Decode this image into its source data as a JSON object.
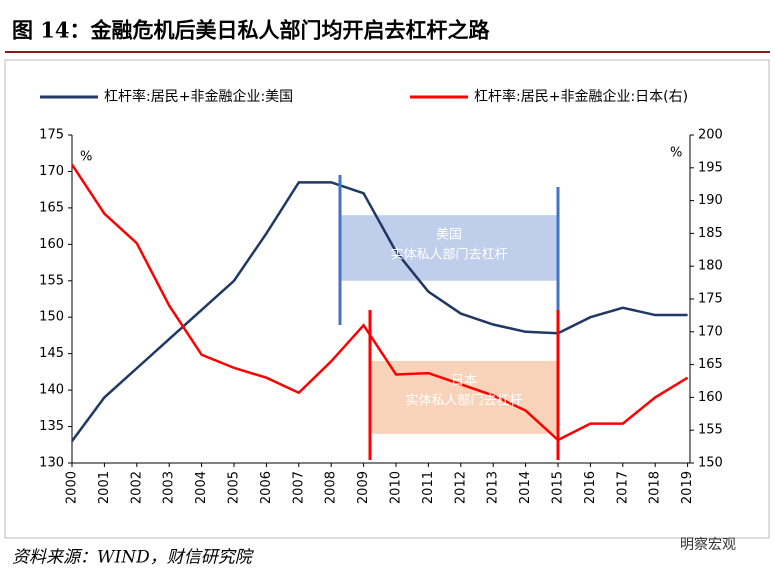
{
  "chart_data": {
    "type": "line",
    "title": "图 14：金融危机后美日私人部门均开启去杠杆之路",
    "source": "资料来源：WIND，财信研究院",
    "watermark": "明察宏观",
    "y_unit": "%",
    "y2_unit": "%",
    "categories": [
      "2000",
      "2001",
      "2002",
      "2003",
      "2004",
      "2005",
      "2006",
      "2007",
      "2008",
      "2009",
      "2010",
      "2011",
      "2012",
      "2013",
      "2014",
      "2015",
      "2016",
      "2017",
      "2018",
      "2019"
    ],
    "series": [
      {
        "name": "杠杆率:居民+非金融企业:美国",
        "color": "#1f3864",
        "values": [
          133,
          139,
          143,
          147,
          151,
          155,
          161.5,
          168.5,
          168.5,
          167,
          159,
          153.5,
          150.5,
          149,
          148,
          147.8,
          150,
          151.3,
          150.3,
          150.3
        ]
      },
      {
        "name": "杠杆率:居民+非金融企业:日本(右)",
        "color": "#ff0000",
        "axis": "y2",
        "values": [
          195.5,
          188,
          183.5,
          174,
          166.5,
          164.5,
          163,
          160.7,
          165.5,
          171,
          163.5,
          163.7,
          162,
          160.3,
          158,
          153.5,
          156,
          156,
          160,
          163
        ]
      }
    ],
    "annotations": [
      {
        "lines": [
          "美国",
          "实体私人部门去杠杆"
        ]
      },
      {
        "lines": [
          "日本",
          "实体私人部门去杠杆"
        ]
      }
    ],
    "ylim": [
      130,
      175
    ],
    "yticks": [
      130,
      135,
      140,
      145,
      150,
      155,
      160,
      165,
      170,
      175
    ],
    "y2lim": [
      150,
      200
    ],
    "y2ticks": [
      150,
      155,
      160,
      165,
      170,
      175,
      180,
      185,
      190,
      195,
      200
    ],
    "legend": "top"
  }
}
